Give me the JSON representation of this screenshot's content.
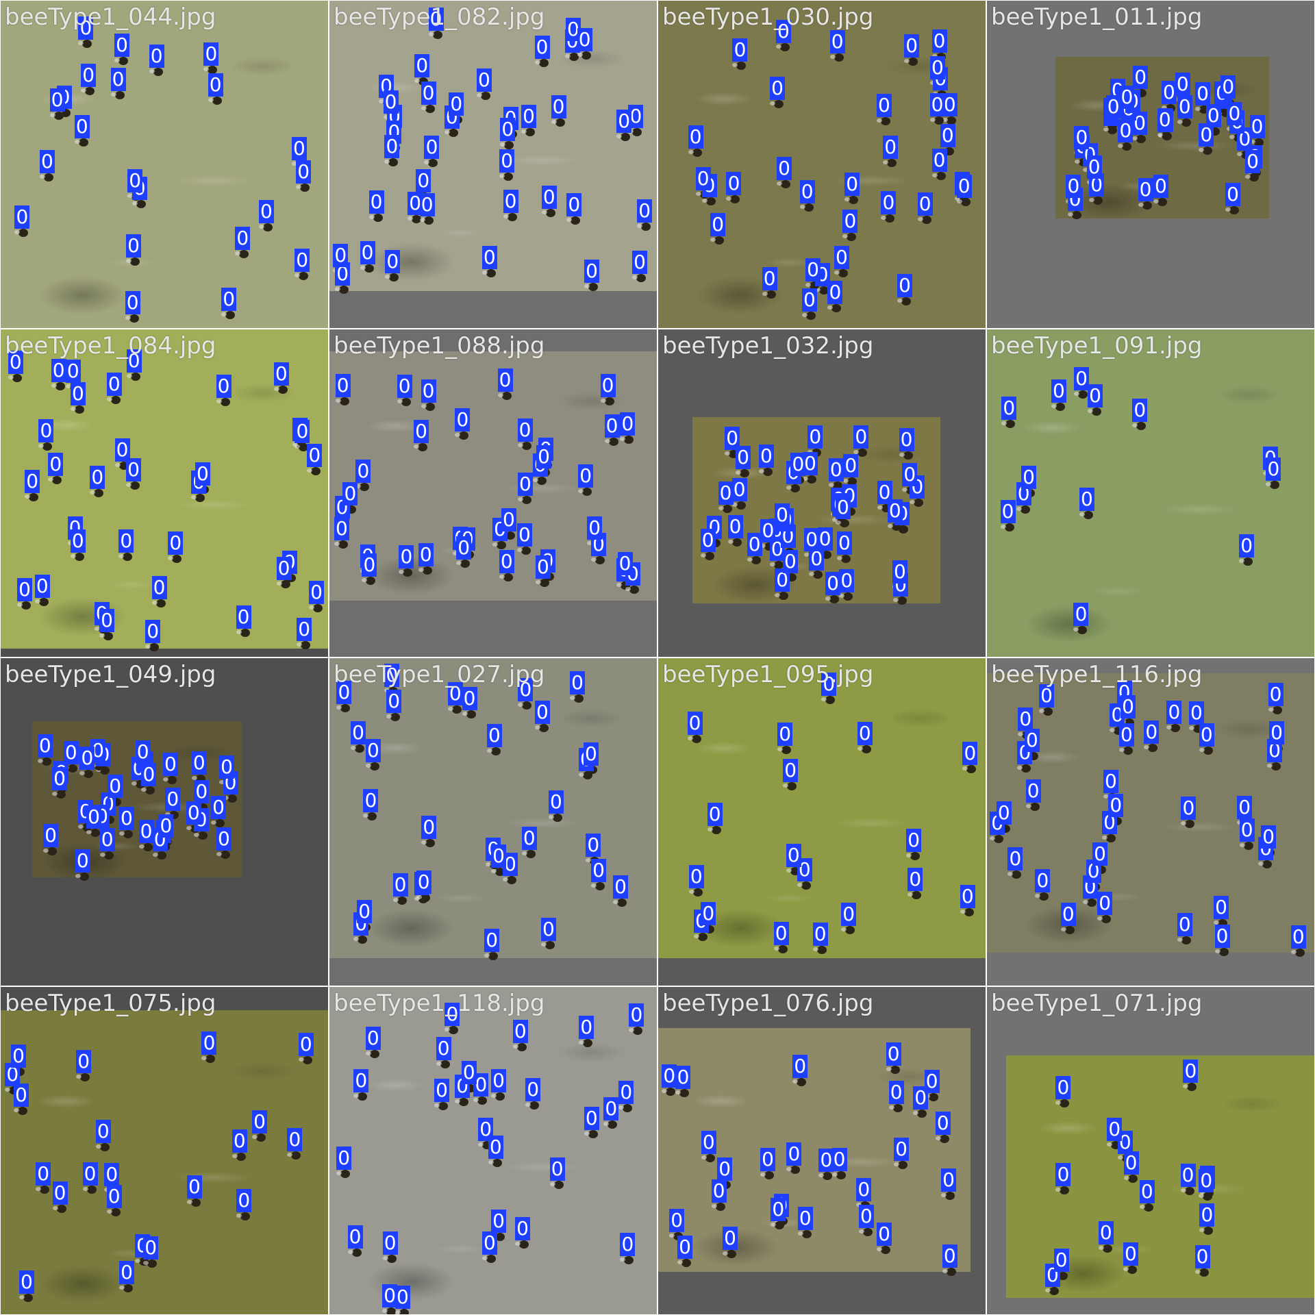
{
  "mosaic": {
    "label_color": "#1f3fff",
    "tiles": [
      {
        "name": "beeType1_044.jpg",
        "img_color": "#a2a67c",
        "count": 22
      },
      {
        "name": "beeType1_082.jpg",
        "img_color": "#a4a38e",
        "count": 38
      },
      {
        "name": "beeType1_030.jpg",
        "img_color": "#7c7a4c",
        "count": 34
      },
      {
        "name": "beeType1_011.jpg",
        "img_color": "#6e6a44",
        "count": 37
      },
      {
        "name": "beeType1_084.jpg",
        "img_color": "#a2ae5a",
        "count": 34
      },
      {
        "name": "beeType1_088.jpg",
        "img_color": "#8f8d7f",
        "count": 37
      },
      {
        "name": "beeType1_032.jpg",
        "img_color": "#7e7846",
        "count": 42
      },
      {
        "name": "beeType1_091.jpg",
        "img_color": "#8a9e64",
        "count": 13
      },
      {
        "name": "beeType1_049.jpg",
        "img_color": "#5e5838",
        "count": 34
      },
      {
        "name": "beeType1_027.jpg",
        "img_color": "#8c8d7c",
        "count": 30
      },
      {
        "name": "beeType1_095.jpg",
        "img_color": "#8e9a44",
        "count": 18
      },
      {
        "name": "beeType1_116.jpg",
        "img_color": "#7f7d62",
        "count": 37
      },
      {
        "name": "beeType1_075.jpg",
        "img_color": "#7a7c3e",
        "count": 21
      },
      {
        "name": "beeType1_118.jpg",
        "img_color": "#9a9a92",
        "count": 28
      },
      {
        "name": "beeType1_076.jpg",
        "img_color": "#8e8a68",
        "count": 27
      },
      {
        "name": "beeType1_071.jpg",
        "img_color": "#8a9440",
        "count": 16
      }
    ]
  }
}
